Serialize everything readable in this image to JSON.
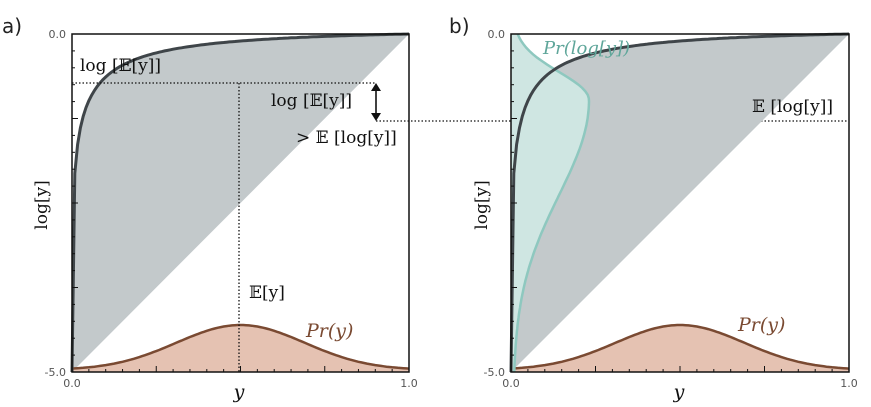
{
  "panels": [
    {
      "label": "a)",
      "y_top_tick": "0.0",
      "y_bottom_tick": "-5.0",
      "x_left_tick": "0.0",
      "x_right_tick": "1.0",
      "x_axis_label": "y",
      "y_axis_label": "log[y]",
      "annotations": {
        "log_mean_left": "log [𝔼[y]]",
        "log_mean_right": "log [𝔼[y]]",
        "gt_mean_log": "> 𝔼 [log[y]]",
        "mean_y": "𝔼[y]",
        "pr_y": "Pr(y)"
      }
    },
    {
      "label": "b)",
      "y_top_tick": "0.0",
      "y_bottom_tick": "-5.0",
      "x_left_tick": "0.0",
      "x_right_tick": "1.0",
      "x_axis_label": "y",
      "y_axis_label": "log[y]",
      "annotations": {
        "pr_log_y": "Pr(log[y])",
        "mean_log_y": "𝔼 [log[y]]",
        "pr_y": "Pr(y)"
      }
    }
  ],
  "colors": {
    "curve": "#3f4549",
    "shade": "#c3c9cb",
    "pdf_fill": "#e5c2b2",
    "pdf_line": "#7a4a32",
    "teal_fill": "#cfe6e2",
    "teal_line": "#8ec8bf",
    "teal_text": "#5fa69a"
  }
}
